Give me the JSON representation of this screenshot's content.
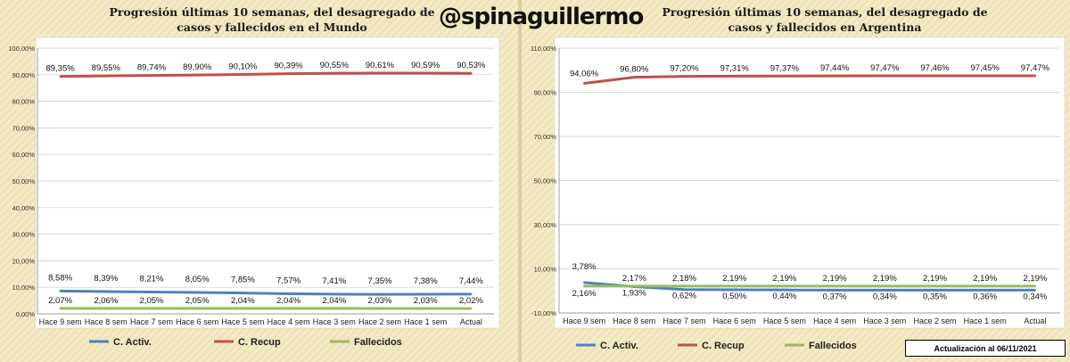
{
  "header": {
    "handle": "@spinaguillermo",
    "update_note": "Actualización  al 06/11/2021"
  },
  "colors": {
    "c_activ": "#4e81bd",
    "c_recup": "#c0504d",
    "fallecidos": "#9bbb59"
  },
  "chart_data": [
    {
      "type": "line",
      "title_line1": "Progresión últimas 10 semanas, del desagregado de",
      "title_line2": "casos y fallecidos en el Mundo",
      "categories": [
        "Hace 9 sem",
        "Hace 8 sem",
        "Hace 7 sem",
        "Hace 6 sem",
        "Hace 5 sem",
        "Hace 4 sem",
        "Hace 3 sem",
        "Hace 2 sem",
        "Hace 1 sem",
        "Actual"
      ],
      "ylim": [
        0,
        100
      ],
      "yticks": [
        "0,00%",
        "10,00%",
        "20,00%",
        "30,00%",
        "40,00%",
        "50,00%",
        "60,00%",
        "70,00%",
        "80,00%",
        "90,00%",
        "100,00%"
      ],
      "series": [
        {
          "name": "C. Activ.",
          "values": [
            8.58,
            8.39,
            8.21,
            8.05,
            7.85,
            7.57,
            7.41,
            7.35,
            7.38,
            7.44
          ],
          "labels": [
            "8,58%",
            "8,39%",
            "8,21%",
            "8,05%",
            "7,85%",
            "7,57%",
            "7,41%",
            "7,35%",
            "7,38%",
            "7,44%"
          ]
        },
        {
          "name": "C. Recup",
          "values": [
            89.35,
            89.55,
            89.74,
            89.9,
            90.1,
            90.39,
            90.55,
            90.61,
            90.59,
            90.53
          ],
          "labels": [
            "89,35%",
            "89,55%",
            "89,74%",
            "89,90%",
            "90,10%",
            "90,39%",
            "90,55%",
            "90,61%",
            "90,59%",
            "90,53%"
          ]
        },
        {
          "name": "Fallecidos",
          "values": [
            2.07,
            2.06,
            2.05,
            2.05,
            2.04,
            2.04,
            2.04,
            2.03,
            2.03,
            2.02
          ],
          "labels": [
            "2,07%",
            "2,06%",
            "2,05%",
            "2,05%",
            "2,04%",
            "2,04%",
            "2,04%",
            "2,03%",
            "2,03%",
            "2,02%"
          ]
        }
      ],
      "grid": true,
      "legend": "bottom"
    },
    {
      "type": "line",
      "title_line1": "Progresión últimas 10 semanas, del desagregado de",
      "title_line2": "casos y fallecidos en Argentina",
      "categories": [
        "Hace 9 sem",
        "Hace 8 sem",
        "Hace 7 sem",
        "Hace 6 sem",
        "Hace 5 sem",
        "Hace 4 sem",
        "Hace 3 sem",
        "Hace 2 sem",
        "Hace 1 sem",
        "Actual"
      ],
      "ylim": [
        -10,
        110
      ],
      "yticks": [
        "-10,00%",
        "10,00%",
        "30,00%",
        "50,00%",
        "70,00%",
        "90,00%",
        "110,00%"
      ],
      "series": [
        {
          "name": "C. Activ.",
          "values": [
            3.78,
            1.93,
            0.62,
            0.5,
            0.44,
            0.37,
            0.34,
            0.35,
            0.36,
            0.34
          ],
          "labels": [
            "3,78%",
            "1,93%",
            "0,62%",
            "0,50%",
            "0,44%",
            "0,37%",
            "0,34%",
            "0,35%",
            "0,36%",
            "0,34%"
          ]
        },
        {
          "name": "C. Recup",
          "values": [
            94.06,
            96.8,
            97.2,
            97.31,
            97.37,
            97.44,
            97.47,
            97.46,
            97.45,
            97.47
          ],
          "labels": [
            "94,06%",
            "96,80%",
            "97,20%",
            "97,31%",
            "97,37%",
            "97,44%",
            "97,47%",
            "97,46%",
            "97,45%",
            "97,47%"
          ]
        },
        {
          "name": "Fallecidos",
          "values": [
            2.16,
            2.17,
            2.18,
            2.19,
            2.19,
            2.19,
            2.19,
            2.19,
            2.19,
            2.19
          ],
          "labels": [
            "2,16%",
            "2,17%",
            "2,18%",
            "2,19%",
            "2,19%",
            "2,19%",
            "2,19%",
            "2,19%",
            "2,19%",
            "2,19%"
          ]
        }
      ],
      "grid": true,
      "legend": "bottom"
    }
  ]
}
